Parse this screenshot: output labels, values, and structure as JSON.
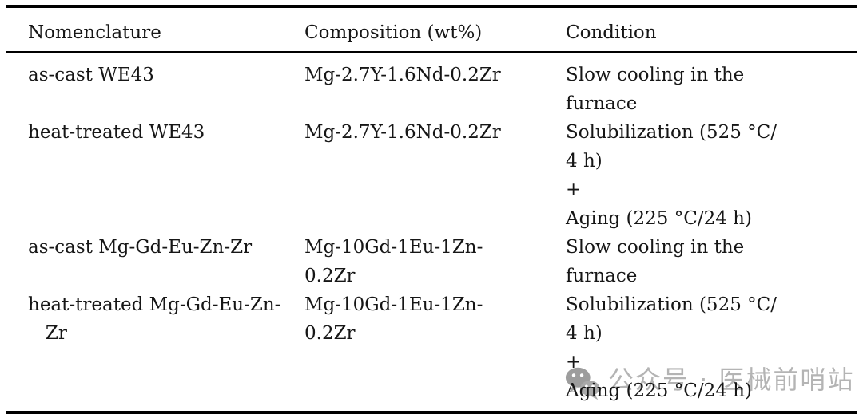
{
  "page": {
    "background": "#ffffff"
  },
  "table": {
    "headers": [
      "Nomenclature",
      "Composition (wt%)",
      "Condition"
    ],
    "rows": [
      {
        "nomenclature": "as-cast WE43",
        "composition": "Mg-2.7Y-1.6Nd-0.2Zr",
        "condition": "Slow cooling in the\nfurnace"
      },
      {
        "nomenclature": "heat-treated WE43",
        "composition": "Mg-2.7Y-1.6Nd-0.2Zr",
        "condition": "Solubilization (525 °C/\n4 h)\n+\nAging (225 °C/24 h)"
      },
      {
        "nomenclature": "as-cast Mg-Gd-Eu-Zn-Zr",
        "composition": "Mg-10Gd-1Eu-1Zn-\n0.2Zr",
        "condition": "Slow cooling in the\nfurnace"
      },
      {
        "nomenclature": "heat-treated Mg-Gd-Eu-Zn-\n   Zr",
        "composition": "Mg-10Gd-1Eu-1Zn-\n0.2Zr",
        "condition": "Solubilization (525 °C/\n4 h)\n+\nAging (225 °C/24 h)"
      }
    ],
    "rule_color": "#000000",
    "text_color": "#161616"
  },
  "watermark": {
    "icon": "wechat-icon",
    "text": "公众号 · 医械前哨站",
    "color": "#b4b4b4"
  }
}
